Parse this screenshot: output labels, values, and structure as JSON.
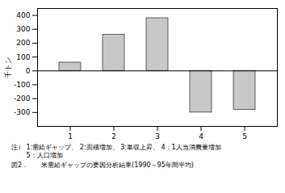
{
  "chart_data": {
    "type": "bar",
    "title": "図2．　　米需給ギャップの要因分析結果(1990～95年間平均)",
    "ylabel": "千トン",
    "annotations": [
      "注） 1:需給ギャップ、 2:面積増加、 3:単収上昇、 4：1人当消費量増加",
      "　　 5：人口増加"
    ],
    "categories": [
      "1",
      "2",
      "3",
      "4",
      "5"
    ],
    "values": [
      60,
      260,
      380,
      -300,
      -280
    ],
    "color": "#c8c8c8",
    "ylim": [
      -400,
      450
    ],
    "yticks": [
      -300,
      -200,
      -100,
      0,
      100,
      200,
      300,
      400
    ],
    "grid": false
  }
}
